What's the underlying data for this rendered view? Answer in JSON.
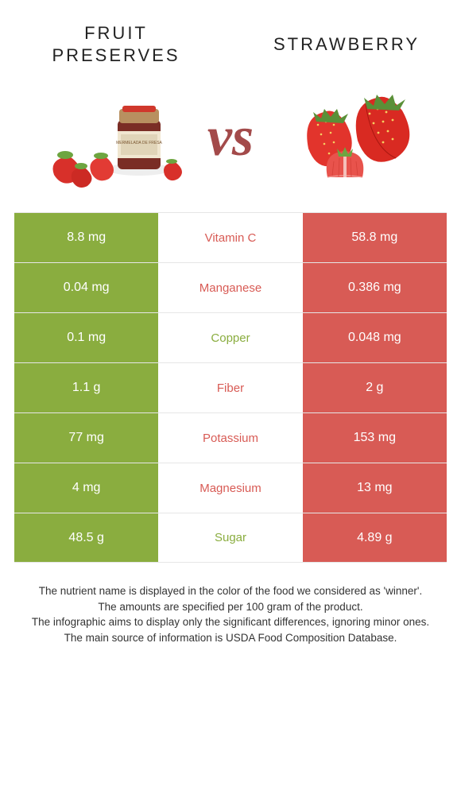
{
  "titles": {
    "left": "Fruit Preserves",
    "right": "Strawberry"
  },
  "vs": "vs",
  "colors": {
    "left": "#8aad3f",
    "right": "#d85b55",
    "border": "#e6e6e6",
    "text": "#333333",
    "vs": "#a34a4a"
  },
  "rows": [
    {
      "name": "Vitamin C",
      "left": "8.8 mg",
      "right": "58.8 mg",
      "winner": "right"
    },
    {
      "name": "Manganese",
      "left": "0.04 mg",
      "right": "0.386 mg",
      "winner": "right"
    },
    {
      "name": "Copper",
      "left": "0.1 mg",
      "right": "0.048 mg",
      "winner": "left"
    },
    {
      "name": "Fiber",
      "left": "1.1 g",
      "right": "2 g",
      "winner": "right"
    },
    {
      "name": "Potassium",
      "left": "77 mg",
      "right": "153 mg",
      "winner": "right"
    },
    {
      "name": "Magnesium",
      "left": "4 mg",
      "right": "13 mg",
      "winner": "right"
    },
    {
      "name": "Sugar",
      "left": "48.5 g",
      "right": "4.89 g",
      "winner": "left"
    }
  ],
  "footer": {
    "line1": "The nutrient name is displayed in the color of the food we considered as 'winner'.",
    "line2": "The amounts are specified per 100 gram of the product.",
    "line3": "The infographic aims to display only the significant differences, ignoring minor ones.",
    "line4": "The main source of information is USDA Food Composition Database."
  }
}
